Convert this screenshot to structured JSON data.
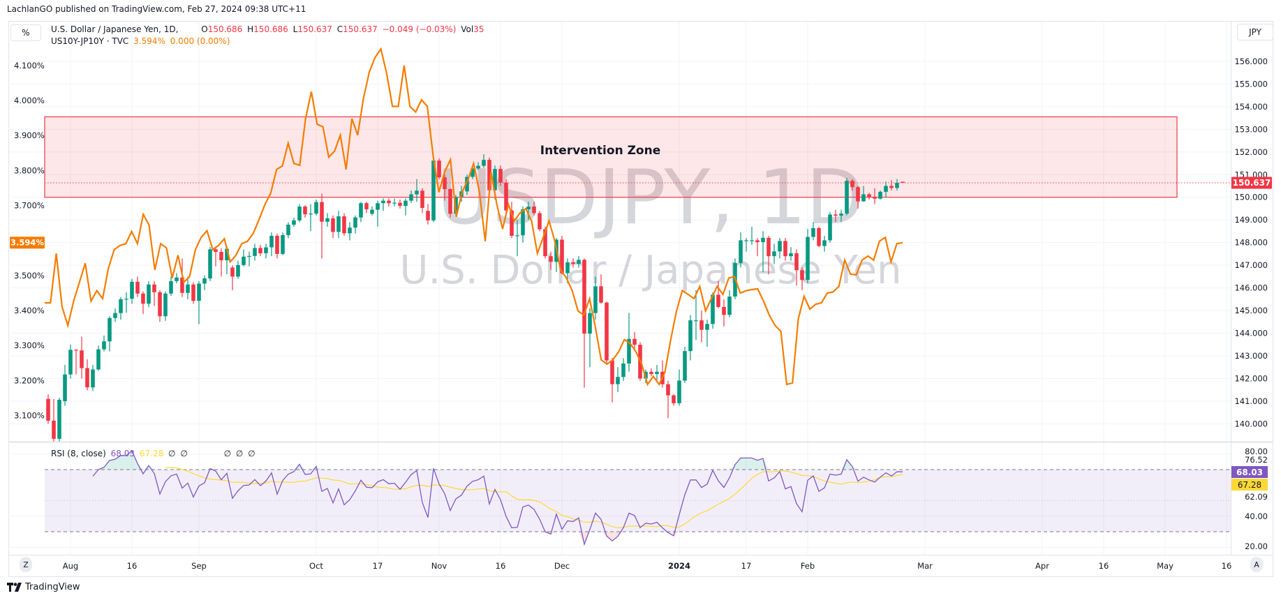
{
  "publisher": "LachlanGO published on TradingView.com, Feb 27, 2024 09:38 UTC+11",
  "toolbar": {
    "percent_label": "%",
    "currency_label": "JPY",
    "auto_label": "A",
    "zoom_label": "Z"
  },
  "legend": {
    "symbol": "U.S. Dollar / Japanese Yen, 1D,",
    "o_label": "O",
    "o": "150.686",
    "h_label": "H",
    "h": "150.686",
    "l_label": "L",
    "l": "150.637",
    "c_label": "C",
    "c": "150.637",
    "change": "−0.049 (−0.03%)",
    "vol_label": "Vol",
    "vol": "35",
    "overlay_symbol": "US10Y-JP10Y · TVC",
    "overlay_value": "3.594%",
    "overlay_change": "0.000 (0.00%)"
  },
  "watermark": {
    "title": "USDJPY, 1D",
    "subtitle": "U.S. Dollar / Japanese Yen"
  },
  "annotation": {
    "label": "Intervention Zone",
    "price_low": 150.0,
    "price_high": 153.55,
    "color": "#f23645"
  },
  "colors": {
    "up": "#089981",
    "down": "#f23645",
    "spread": "#f57c00",
    "rsi": "#7e57c2",
    "rsi_ma": "#fdd835",
    "grid": "#f0f3fa"
  },
  "price_axis": {
    "labels": [
      "156.000",
      "155.000",
      "154.000",
      "153.000",
      "152.000",
      "151.000",
      "150.000",
      "149.000",
      "148.000",
      "147.000",
      "146.000",
      "145.000",
      "144.000",
      "143.000",
      "142.000",
      "141.000",
      "140.000"
    ],
    "last_price": "150.637"
  },
  "percent_axis": {
    "labels": [
      "4.100%",
      "4.000%",
      "3.900%",
      "3.800%",
      "3.700%",
      "3.500%",
      "3.400%",
      "3.300%",
      "3.200%",
      "3.100%"
    ],
    "last_value": "3.594%"
  },
  "rsi": {
    "title": "RSI (8, close)",
    "value": "68.03",
    "ma_value": "67.28",
    "placeholders": [
      "∅",
      "∅",
      "∅",
      "∅",
      "∅"
    ],
    "axis_labels": [
      "80.00",
      "76.52",
      "62.09",
      "40.00",
      "20.00"
    ],
    "length": 8,
    "ma_length": 14,
    "upper": 70,
    "lower": 30,
    "middle": 50
  },
  "x_axis": {
    "start_date": "2023-07-26",
    "ticks": [
      {
        "label": "Aug",
        "date": "2023-08-01"
      },
      {
        "label": "16",
        "date": "2023-08-16"
      },
      {
        "label": "Sep",
        "date": "2023-09-01"
      },
      {
        "label": "Oct",
        "date": "2023-10-02"
      },
      {
        "label": "17",
        "date": "2023-10-17"
      },
      {
        "label": "Nov",
        "date": "2023-11-01"
      },
      {
        "label": "16",
        "date": "2023-11-16"
      },
      {
        "label": "Dec",
        "date": "2023-12-01"
      },
      {
        "label": "2024",
        "date": "2024-01-01",
        "bold": true
      },
      {
        "label": "17",
        "date": "2024-01-17"
      },
      {
        "label": "Feb",
        "date": "2024-02-01"
      },
      {
        "label": "Mar",
        "date": "2024-03-01"
      },
      {
        "label": "Apr",
        "date": "2024-04-01"
      },
      {
        "label": "16",
        "date": "2024-04-16"
      },
      {
        "label": "May",
        "date": "2024-05-01"
      },
      {
        "label": "16",
        "date": "2024-05-16"
      }
    ]
  },
  "footer": {
    "brand": "TradingView"
  },
  "chart_data": {
    "type": "candlestick",
    "symbol": "USDJPY",
    "interval": "1D",
    "ylim": [
      139.0,
      156.5
    ],
    "candles_ohlc": [
      [
        141.1,
        141.3,
        140.0,
        140.14
      ],
      [
        140.14,
        141.1,
        139.1,
        139.34
      ],
      [
        139.34,
        141.15,
        139.1,
        141.06
      ],
      [
        141.0,
        142.6,
        140.8,
        142.18
      ],
      [
        142.18,
        143.5,
        142.0,
        143.27
      ],
      [
        143.27,
        143.3,
        142.18,
        143.24
      ],
      [
        143.24,
        143.85,
        142.0,
        142.46
      ],
      [
        142.46,
        142.85,
        141.48,
        141.61
      ],
      [
        141.61,
        142.6,
        141.45,
        142.4
      ],
      [
        142.4,
        143.45,
        142.35,
        143.29
      ],
      [
        143.29,
        143.9,
        143.2,
        143.64
      ],
      [
        143.64,
        144.75,
        143.2,
        144.67
      ],
      [
        144.67,
        145.1,
        144.5,
        144.89
      ],
      [
        144.89,
        145.6,
        144.6,
        145.5
      ],
      [
        145.5,
        145.8,
        144.9,
        145.52
      ],
      [
        145.52,
        146.4,
        145.3,
        146.27
      ],
      [
        146.27,
        146.5,
        145.6,
        145.75
      ],
      [
        145.75,
        145.85,
        144.85,
        145.3
      ],
      [
        145.3,
        146.3,
        145.15,
        146.15
      ],
      [
        146.15,
        146.3,
        145.2,
        145.81
      ],
      [
        145.81,
        145.9,
        144.5,
        144.75
      ],
      [
        144.75,
        145.85,
        144.55,
        145.75
      ],
      [
        145.75,
        146.5,
        145.65,
        146.3
      ],
      [
        146.3,
        146.65,
        146.2,
        146.46
      ],
      [
        146.46,
        147.3,
        145.6,
        145.78
      ],
      [
        145.78,
        146.5,
        145.5,
        146.15
      ],
      [
        146.15,
        146.25,
        145.3,
        145.43
      ],
      [
        145.43,
        146.3,
        144.4,
        146.19
      ],
      [
        146.19,
        146.55,
        145.9,
        146.42
      ],
      [
        146.42,
        147.8,
        146.3,
        147.7
      ],
      [
        147.7,
        147.8,
        146.95,
        147.59
      ],
      [
        147.59,
        147.75,
        146.5,
        147.22
      ],
      [
        147.22,
        147.85,
        146.6,
        147.73
      ],
      [
        146.9,
        147.0,
        145.9,
        146.5
      ],
      [
        146.5,
        147.2,
        146.4,
        147.01
      ],
      [
        147.01,
        147.7,
        146.95,
        147.38
      ],
      [
        147.38,
        147.6,
        146.95,
        147.41
      ],
      [
        147.41,
        147.95,
        147.2,
        147.76
      ],
      [
        147.76,
        147.9,
        147.4,
        147.53
      ],
      [
        147.53,
        147.95,
        147.3,
        147.79
      ],
      [
        147.79,
        148.45,
        147.4,
        148.3
      ],
      [
        148.3,
        148.4,
        147.3,
        147.5
      ],
      [
        147.5,
        148.45,
        147.45,
        148.33
      ],
      [
        148.33,
        148.9,
        148.2,
        148.79
      ],
      [
        148.79,
        149.1,
        148.7,
        148.98
      ],
      [
        148.98,
        149.7,
        148.9,
        149.59
      ],
      [
        149.59,
        149.65,
        149.1,
        149.25
      ],
      [
        149.25,
        149.7,
        148.5,
        149.28
      ],
      [
        149.28,
        149.9,
        149.2,
        149.79
      ],
      [
        149.79,
        150.16,
        147.3,
        148.92
      ],
      [
        148.92,
        149.3,
        148.7,
        149.07
      ],
      [
        149.07,
        149.2,
        148.2,
        148.47
      ],
      [
        148.47,
        149.4,
        148.2,
        149.16
      ],
      [
        149.16,
        149.3,
        148.3,
        148.41
      ],
      [
        148.41,
        148.9,
        148.1,
        148.66
      ],
      [
        148.66,
        149.2,
        148.4,
        149.11
      ],
      [
        149.11,
        149.8,
        148.9,
        149.74
      ],
      [
        149.74,
        149.8,
        149.3,
        149.47
      ],
      [
        149.27,
        149.6,
        149.2,
        149.45
      ],
      [
        149.45,
        149.85,
        148.7,
        149.74
      ],
      [
        149.74,
        149.95,
        149.4,
        149.85
      ],
      [
        149.85,
        149.95,
        149.6,
        149.74
      ],
      [
        149.74,
        149.95,
        149.6,
        149.76
      ],
      [
        149.76,
        149.9,
        149.5,
        149.62
      ],
      [
        149.62,
        149.95,
        149.2,
        149.85
      ],
      [
        149.85,
        150.3,
        149.75,
        150.13
      ],
      [
        150.13,
        150.8,
        149.8,
        150.29
      ],
      [
        150.29,
        150.4,
        149.3,
        149.53
      ],
      [
        149.4,
        149.7,
        148.8,
        148.98
      ],
      [
        148.98,
        151.7,
        148.9,
        151.62
      ],
      [
        151.62,
        151.72,
        150.8,
        150.88
      ],
      [
        150.88,
        151.0,
        149.85,
        150.36
      ],
      [
        150.36,
        150.4,
        149.1,
        149.27
      ],
      [
        149.27,
        150.1,
        149.2,
        150.01
      ],
      [
        150.01,
        150.5,
        149.8,
        150.26
      ],
      [
        150.26,
        151.0,
        150.1,
        150.9
      ],
      [
        150.9,
        151.4,
        150.8,
        151.27
      ],
      [
        151.27,
        151.55,
        151.2,
        151.39
      ],
      [
        151.39,
        151.9,
        151.3,
        151.65
      ],
      [
        151.65,
        151.75,
        150.2,
        150.31
      ],
      [
        150.31,
        151.4,
        149.9,
        151.25
      ],
      [
        151.25,
        151.4,
        150.5,
        150.65
      ],
      [
        150.65,
        150.8,
        149.3,
        149.42
      ],
      [
        149.42,
        149.8,
        148.2,
        148.3
      ],
      [
        148.3,
        149.0,
        147.4,
        148.32
      ],
      [
        148.32,
        149.6,
        148.0,
        149.47
      ],
      [
        149.47,
        149.8,
        149.0,
        149.59
      ],
      [
        149.59,
        149.8,
        149.2,
        149.3
      ],
      [
        149.3,
        149.4,
        148.5,
        148.59
      ],
      [
        148.59,
        148.7,
        147.3,
        147.4
      ],
      [
        147.4,
        147.6,
        146.8,
        147.15
      ],
      [
        147.15,
        148.2,
        146.7,
        148.13
      ],
      [
        148.13,
        148.3,
        146.6,
        146.65
      ],
      [
        146.65,
        147.3,
        146.2,
        147.13
      ],
      [
        147.13,
        147.3,
        146.9,
        147.06
      ],
      [
        147.06,
        147.4,
        146.9,
        147.24
      ],
      [
        147.24,
        147.3,
        141.6,
        143.98
      ],
      [
        143.98,
        145.1,
        142.5,
        144.89
      ],
      [
        144.89,
        146.5,
        144.6,
        146.07
      ],
      [
        146.07,
        146.6,
        145.3,
        145.35
      ],
      [
        145.35,
        145.4,
        142.6,
        142.8
      ],
      [
        142.8,
        142.9,
        140.95,
        141.75
      ],
      [
        141.75,
        142.5,
        141.4,
        142.07
      ],
      [
        142.07,
        142.9,
        141.9,
        142.66
      ],
      [
        142.66,
        144.9,
        142.3,
        143.75
      ],
      [
        143.75,
        144.05,
        143.3,
        143.49
      ],
      [
        143.49,
        143.6,
        141.9,
        142.0
      ],
      [
        142.0,
        142.4,
        141.8,
        142.3
      ],
      [
        142.3,
        142.45,
        142.1,
        142.2
      ],
      [
        142.2,
        142.6,
        141.9,
        142.3
      ],
      [
        142.3,
        142.8,
        141.6,
        141.75
      ],
      [
        141.75,
        141.9,
        140.25,
        141.26
      ],
      [
        141.26,
        141.3,
        140.8,
        140.91
      ],
      [
        140.91,
        142.4,
        140.8,
        141.91
      ],
      [
        141.91,
        143.4,
        141.8,
        143.21
      ],
      [
        143.21,
        144.8,
        142.8,
        144.57
      ],
      [
        144.57,
        145.9,
        143.7,
        144.57
      ],
      [
        144.57,
        145.0,
        143.6,
        144.15
      ],
      [
        144.15,
        144.6,
        143.4,
        144.41
      ],
      [
        144.41,
        145.8,
        144.2,
        145.7
      ],
      [
        145.7,
        146.3,
        145.1,
        145.16
      ],
      [
        145.16,
        145.5,
        144.3,
        144.81
      ],
      [
        144.81,
        145.9,
        144.7,
        145.62
      ],
      [
        145.62,
        147.3,
        145.5,
        147.1
      ],
      [
        147.1,
        148.45,
        146.9,
        148.1
      ],
      [
        148.1,
        148.2,
        147.6,
        148.1
      ],
      [
        148.1,
        148.7,
        147.9,
        148.1
      ],
      [
        148.1,
        148.2,
        147.4,
        148.02
      ],
      [
        148.02,
        148.5,
        146.7,
        148.21
      ],
      [
        148.21,
        148.3,
        146.6,
        147.4
      ],
      [
        147.4,
        147.95,
        147.05,
        147.61
      ],
      [
        147.61,
        148.2,
        147.3,
        148.07
      ],
      [
        148.07,
        148.2,
        147.2,
        147.4
      ],
      [
        147.4,
        147.8,
        147.2,
        147.53
      ],
      [
        147.53,
        147.7,
        146.1,
        146.78
      ],
      [
        146.78,
        146.9,
        145.9,
        146.35
      ],
      [
        146.35,
        148.6,
        146.2,
        148.25
      ],
      [
        148.25,
        148.9,
        148.1,
        148.64
      ],
      [
        148.64,
        148.7,
        147.8,
        147.85
      ],
      [
        147.85,
        148.3,
        147.6,
        148.1
      ],
      [
        148.1,
        149.35,
        148.0,
        149.24
      ],
      [
        149.24,
        149.45,
        148.9,
        149.19
      ],
      [
        149.19,
        149.45,
        148.9,
        149.28
      ],
      [
        149.28,
        150.85,
        149.2,
        150.73
      ],
      [
        150.73,
        150.8,
        150.3,
        150.45
      ],
      [
        150.45,
        150.5,
        149.5,
        149.82
      ],
      [
        149.82,
        150.5,
        149.8,
        150.13
      ],
      [
        150.13,
        150.2,
        149.9,
        150.02
      ],
      [
        150.02,
        150.4,
        149.7,
        149.94
      ],
      [
        149.94,
        150.3,
        149.9,
        150.24
      ],
      [
        150.24,
        150.7,
        150.0,
        150.5
      ],
      [
        150.5,
        150.75,
        150.3,
        150.41
      ],
      [
        150.41,
        150.8,
        150.3,
        150.64
      ],
      [
        150.686,
        150.686,
        150.637,
        150.637
      ]
    ],
    "overlay_series": {
      "symbol": "US10Y-JP10Y",
      "unit": "%",
      "ylim": [
        3.05,
        4.2
      ],
      "values": [
        3.422,
        3.422,
        3.563,
        3.411,
        3.357,
        3.427,
        3.481,
        3.535,
        3.427,
        3.457,
        3.434,
        3.521,
        3.574,
        3.586,
        3.591,
        3.626,
        3.591,
        3.675,
        3.644,
        3.516,
        3.591,
        3.579,
        3.493,
        3.558,
        3.481,
        3.497,
        3.574,
        3.609,
        3.628,
        3.574,
        3.586,
        3.605,
        3.539,
        3.558,
        3.591,
        3.598,
        3.621,
        3.661,
        3.703,
        3.736,
        3.803,
        3.813,
        3.878,
        3.82,
        3.815,
        3.948,
        4.025,
        3.932,
        3.925,
        3.838,
        3.855,
        3.901,
        3.803,
        3.948,
        3.901,
        4.007,
        4.081,
        4.123,
        4.147,
        4.077,
        3.983,
        3.983,
        4.1,
        3.983,
        3.967,
        4.002,
        3.983,
        3.843,
        3.738,
        3.796,
        3.831,
        3.668,
        3.738,
        3.773,
        3.82,
        3.738,
        3.598,
        3.796,
        3.703,
        3.633,
        3.703,
        3.656,
        3.679,
        3.691,
        3.656,
        3.563,
        3.609,
        3.656,
        3.598,
        3.516,
        3.493,
        3.457,
        3.399,
        3.387,
        3.434,
        3.352,
        3.259,
        3.247,
        3.259,
        3.282,
        3.317,
        3.306,
        3.282,
        3.247,
        3.189,
        3.212,
        3.189,
        3.224,
        3.317,
        3.399,
        3.457,
        3.446,
        3.434,
        3.469,
        3.399,
        3.434,
        3.469,
        3.446,
        3.493,
        3.497,
        3.45,
        3.457,
        3.46,
        3.462,
        3.427,
        3.387,
        3.357,
        3.341,
        3.189,
        3.193,
        3.376,
        3.441,
        3.404,
        3.418,
        3.422,
        3.45,
        3.453,
        3.469,
        3.544,
        3.504,
        3.502,
        3.544,
        3.556,
        3.544,
        3.598,
        3.609,
        3.539,
        3.591,
        3.594
      ]
    },
    "indicator": {
      "name": "RSI",
      "length": 8,
      "source": "close",
      "ylim": [
        15,
        85
      ]
    }
  }
}
